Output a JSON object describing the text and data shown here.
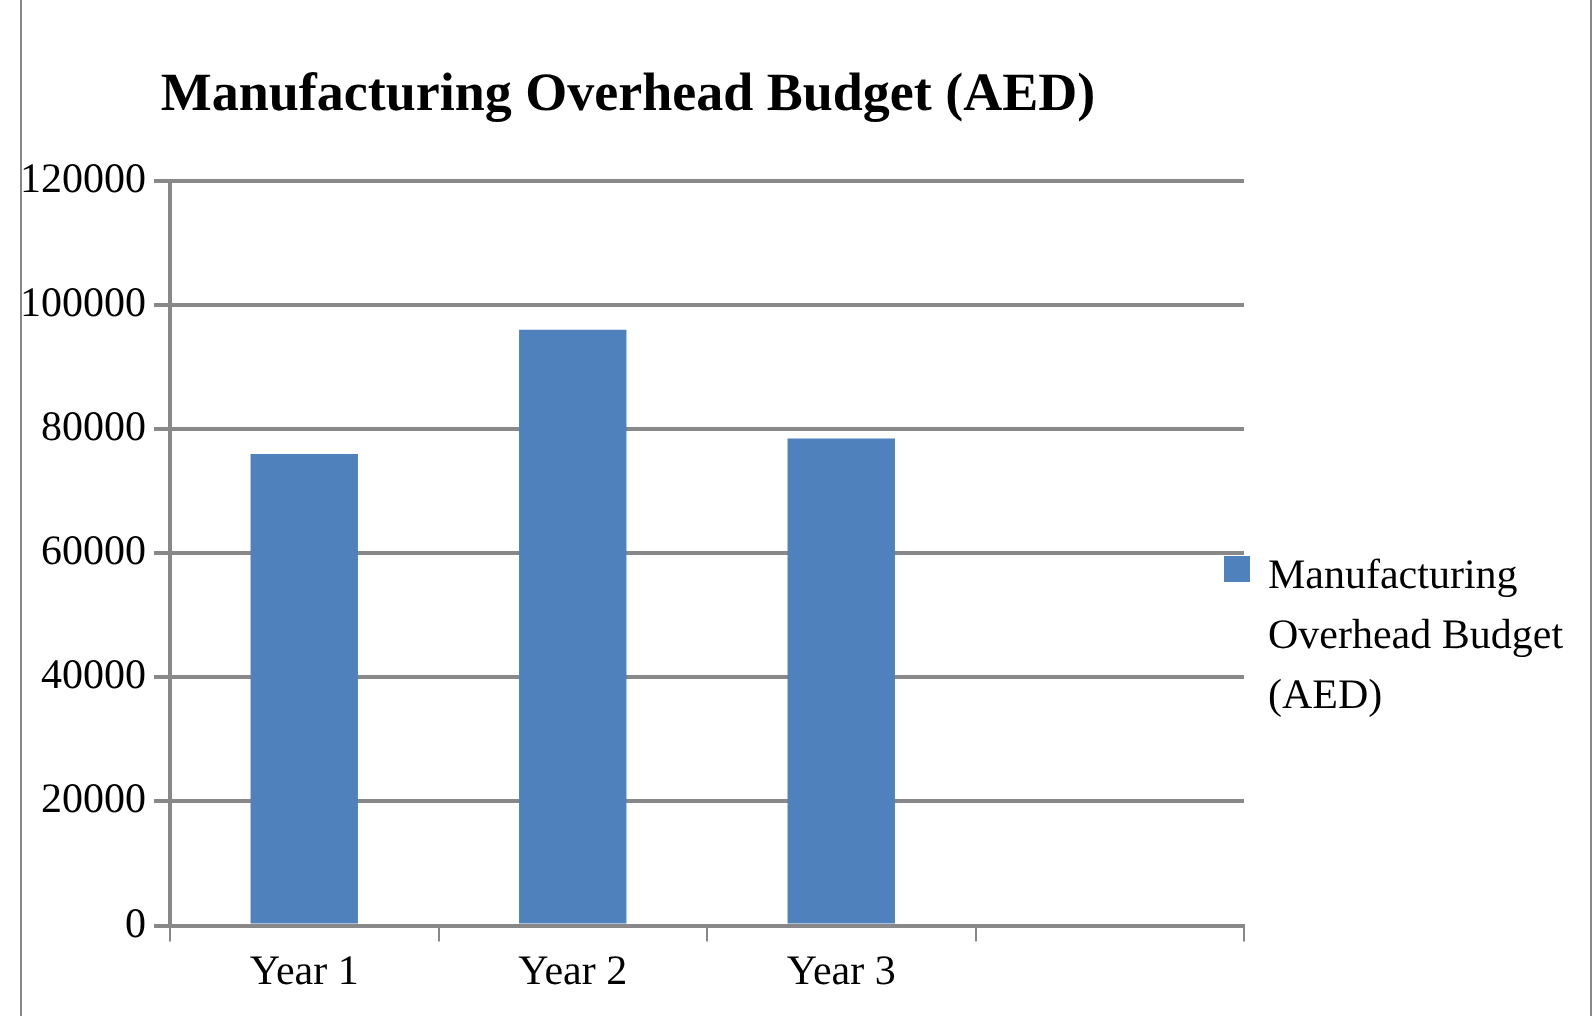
{
  "chart_data": {
    "type": "bar",
    "title": "Manufacturing Overhead Budget (AED)",
    "categories": [
      "Year 1",
      "Year 2",
      "Year 3",
      null
    ],
    "series": [
      {
        "name": "Manufacturing Overhead Budget (AED)",
        "color": "#4f81bd",
        "values": [
          76000,
          96000,
          78500,
          null
        ]
      }
    ],
    "ylim": [
      0,
      120000
    ],
    "yticks": [
      0,
      20000,
      40000,
      60000,
      80000,
      100000,
      120000
    ],
    "grid": "y",
    "legend": "right"
  }
}
